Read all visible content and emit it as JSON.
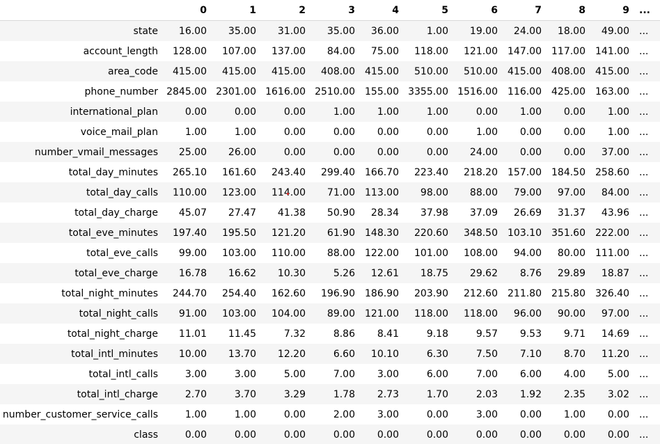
{
  "table": {
    "column_headers": [
      "",
      "0",
      "1",
      "2",
      "3",
      "4",
      "5",
      "6",
      "7",
      "8",
      "9",
      "..."
    ],
    "rows": [
      {
        "label": "state",
        "values": [
          "16.00",
          "35.00",
          "31.00",
          "35.00",
          "36.00",
          "1.00",
          "19.00",
          "24.00",
          "18.00",
          "49.00"
        ],
        "ellipsis": "..."
      },
      {
        "label": "account_length",
        "values": [
          "128.00",
          "107.00",
          "137.00",
          "84.00",
          "75.00",
          "118.00",
          "121.00",
          "147.00",
          "117.00",
          "141.00"
        ],
        "ellipsis": "..."
      },
      {
        "label": "area_code",
        "values": [
          "415.00",
          "415.00",
          "415.00",
          "408.00",
          "415.00",
          "510.00",
          "510.00",
          "415.00",
          "408.00",
          "415.00"
        ],
        "ellipsis": "..."
      },
      {
        "label": "phone_number",
        "values": [
          "2845.00",
          "2301.00",
          "1616.00",
          "2510.00",
          "155.00",
          "3355.00",
          "1516.00",
          "116.00",
          "425.00",
          "163.00"
        ],
        "ellipsis": "..."
      },
      {
        "label": "international_plan",
        "values": [
          "0.00",
          "0.00",
          "0.00",
          "1.00",
          "1.00",
          "1.00",
          "0.00",
          "1.00",
          "0.00",
          "1.00"
        ],
        "ellipsis": "..."
      },
      {
        "label": "voice_mail_plan",
        "values": [
          "1.00",
          "1.00",
          "0.00",
          "0.00",
          "0.00",
          "0.00",
          "1.00",
          "0.00",
          "0.00",
          "1.00"
        ],
        "ellipsis": "..."
      },
      {
        "label": "number_vmail_messages",
        "values": [
          "25.00",
          "26.00",
          "0.00",
          "0.00",
          "0.00",
          "0.00",
          "24.00",
          "0.00",
          "0.00",
          "37.00"
        ],
        "ellipsis": "..."
      },
      {
        "label": "total_day_minutes",
        "values": [
          "265.10",
          "161.60",
          "243.40",
          "299.40",
          "166.70",
          "223.40",
          "218.20",
          "157.00",
          "184.50",
          "258.60"
        ],
        "ellipsis": "..."
      },
      {
        "label": "total_day_calls",
        "values": [
          "110.00",
          "123.00",
          "114.00",
          "71.00",
          "113.00",
          "98.00",
          "88.00",
          "79.00",
          "97.00",
          "84.00"
        ],
        "ellipsis": "..."
      },
      {
        "label": "total_day_charge",
        "values": [
          "45.07",
          "27.47",
          "41.38",
          "50.90",
          "28.34",
          "37.98",
          "37.09",
          "26.69",
          "31.37",
          "43.96"
        ],
        "ellipsis": "..."
      },
      {
        "label": "total_eve_minutes",
        "values": [
          "197.40",
          "195.50",
          "121.20",
          "61.90",
          "148.30",
          "220.60",
          "348.50",
          "103.10",
          "351.60",
          "222.00"
        ],
        "ellipsis": "..."
      },
      {
        "label": "total_eve_calls",
        "values": [
          "99.00",
          "103.00",
          "110.00",
          "88.00",
          "122.00",
          "101.00",
          "108.00",
          "94.00",
          "80.00",
          "111.00"
        ],
        "ellipsis": "..."
      },
      {
        "label": "total_eve_charge",
        "values": [
          "16.78",
          "16.62",
          "10.30",
          "5.26",
          "12.61",
          "18.75",
          "29.62",
          "8.76",
          "29.89",
          "18.87"
        ],
        "ellipsis": "..."
      },
      {
        "label": "total_night_minutes",
        "values": [
          "244.70",
          "254.40",
          "162.60",
          "196.90",
          "186.90",
          "203.90",
          "212.60",
          "211.80",
          "215.80",
          "326.40"
        ],
        "ellipsis": "..."
      },
      {
        "label": "total_night_calls",
        "values": [
          "91.00",
          "103.00",
          "104.00",
          "89.00",
          "121.00",
          "118.00",
          "118.00",
          "96.00",
          "90.00",
          "97.00"
        ],
        "ellipsis": "..."
      },
      {
        "label": "total_night_charge",
        "values": [
          "11.01",
          "11.45",
          "7.32",
          "8.86",
          "8.41",
          "9.18",
          "9.57",
          "9.53",
          "9.71",
          "14.69"
        ],
        "ellipsis": "..."
      },
      {
        "label": "total_intl_minutes",
        "values": [
          "10.00",
          "13.70",
          "12.20",
          "6.60",
          "10.10",
          "6.30",
          "7.50",
          "7.10",
          "8.70",
          "11.20"
        ],
        "ellipsis": "..."
      },
      {
        "label": "total_intl_calls",
        "values": [
          "3.00",
          "3.00",
          "5.00",
          "7.00",
          "3.00",
          "6.00",
          "7.00",
          "6.00",
          "4.00",
          "5.00"
        ],
        "ellipsis": "..."
      },
      {
        "label": "total_intl_charge",
        "values": [
          "2.70",
          "3.70",
          "3.29",
          "1.78",
          "2.73",
          "1.70",
          "2.03",
          "1.92",
          "2.35",
          "3.02"
        ],
        "ellipsis": "..."
      },
      {
        "label": "number_customer_service_calls",
        "values": [
          "1.00",
          "1.00",
          "0.00",
          "2.00",
          "3.00",
          "0.00",
          "3.00",
          "0.00",
          "1.00",
          "0.00"
        ],
        "ellipsis": "..."
      },
      {
        "label": "class",
        "values": [
          "0.00",
          "0.00",
          "0.00",
          "0.00",
          "0.00",
          "0.00",
          "0.00",
          "0.00",
          "0.00",
          "0.00"
        ],
        "ellipsis": "..."
      }
    ]
  },
  "colors": {
    "row_stripe": "#f5f5f5",
    "row_plain": "#ffffff",
    "cursor_dot": "#e02020"
  }
}
